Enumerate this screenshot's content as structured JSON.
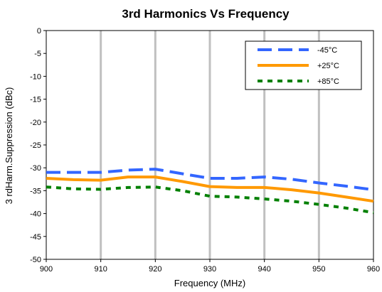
{
  "chart_data": {
    "type": "line",
    "title": "3rd Harmonics Vs Frequency",
    "xlabel": "Frequency (MHz)",
    "ylabel": "3 rdHarm.Suppression (dBc)",
    "xlim": [
      900,
      960
    ],
    "ylim": [
      -50,
      0
    ],
    "xticks": [
      900,
      910,
      920,
      930,
      940,
      950,
      960
    ],
    "yticks": [
      0,
      -5,
      -10,
      -15,
      -20,
      -25,
      -30,
      -35,
      -40,
      -45,
      -50
    ],
    "grid": {
      "vertical": true,
      "horizontal": false
    },
    "legend": "top-right",
    "series": [
      {
        "name": "-45°C",
        "color": "#3366ff",
        "style": "dashed",
        "x": [
          900,
          905,
          910,
          915,
          920,
          925,
          930,
          935,
          940,
          945,
          950,
          955,
          960
        ],
        "y": [
          -31.0,
          -31.0,
          -31.0,
          -30.5,
          -30.3,
          -31.3,
          -32.3,
          -32.3,
          -32.0,
          -32.5,
          -33.3,
          -34.0,
          -34.8
        ]
      },
      {
        "name": "+25°C",
        "color": "#ff9900",
        "style": "solid",
        "x": [
          900,
          905,
          910,
          915,
          920,
          925,
          930,
          935,
          940,
          945,
          950,
          955,
          960
        ],
        "y": [
          -32.3,
          -32.6,
          -32.7,
          -32.0,
          -32.0,
          -33.0,
          -34.1,
          -34.3,
          -34.3,
          -34.8,
          -35.5,
          -36.4,
          -37.3
        ]
      },
      {
        "name": "+85°C",
        "color": "#008000",
        "style": "dotted",
        "x": [
          900,
          905,
          910,
          915,
          920,
          925,
          930,
          935,
          940,
          945,
          950,
          955,
          960
        ],
        "y": [
          -34.2,
          -34.6,
          -34.7,
          -34.3,
          -34.2,
          -35.0,
          -36.2,
          -36.4,
          -36.8,
          -37.3,
          -38.0,
          -38.8,
          -39.8
        ]
      }
    ]
  }
}
